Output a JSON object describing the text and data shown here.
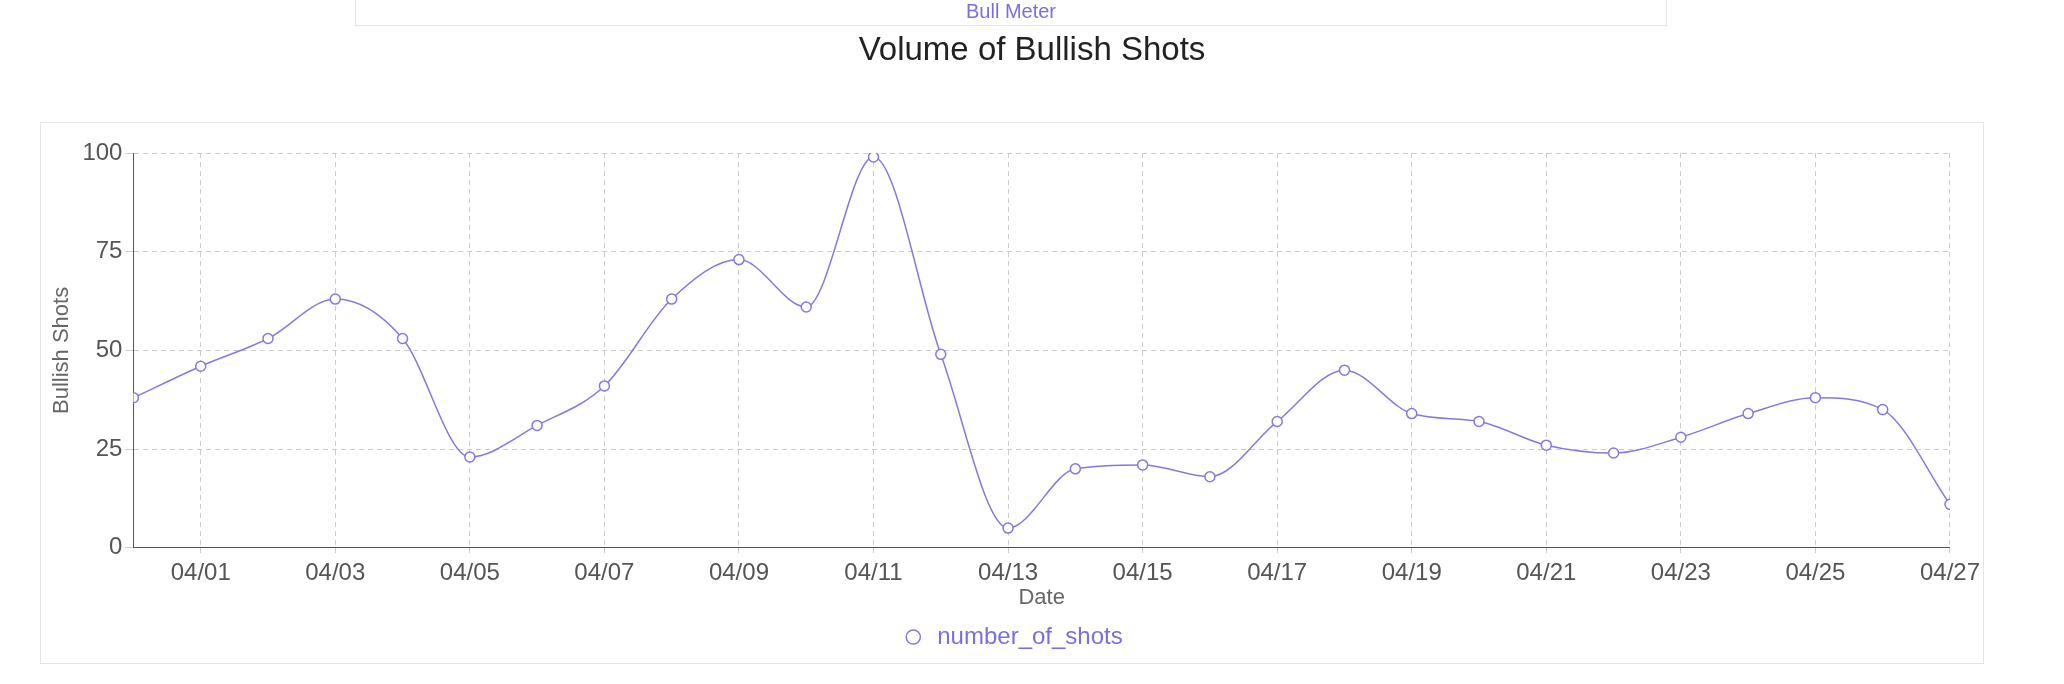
{
  "chart_data": {
    "type": "line",
    "title": "Volume of Bullish Shots",
    "xlabel": "Date",
    "ylabel": "Bullish Shots",
    "annotations": [
      "Bull Meter"
    ],
    "x": [
      "--03-31",
      "--04-01",
      "--04-02",
      "--04-03",
      "--04-04",
      "--04-05",
      "--04-06",
      "--04-07",
      "--04-08",
      "--04-09",
      "--04-10",
      "--04-11",
      "--04-12",
      "--04-13",
      "--04-14",
      "--04-15",
      "--04-16",
      "--04-17",
      "--04-18",
      "--04-19",
      "--04-20",
      "--04-21",
      "--04-22",
      "--04-23",
      "--04-24",
      "--04-25",
      "--04-26",
      "--04-27"
    ],
    "series": [
      {
        "name": "number_of_shots",
        "color": "#8579e0",
        "values": [
          38,
          46,
          53,
          63,
          53,
          23,
          31,
          41,
          63,
          73,
          61,
          99,
          49,
          5,
          20,
          21,
          18,
          32,
          45,
          34,
          32,
          26,
          24,
          28,
          34,
          38,
          35,
          11
        ]
      }
    ],
    "xlim": [
      "--03-31",
      "--04-27"
    ],
    "xticks": [
      {
        "value": "--04-01",
        "label": "04/01"
      },
      {
        "value": "--04-03",
        "label": "04/03"
      },
      {
        "value": "--04-05",
        "label": "04/05"
      },
      {
        "value": "--04-07",
        "label": "04/07"
      },
      {
        "value": "--04-09",
        "label": "04/09"
      },
      {
        "value": "--04-11",
        "label": "04/11"
      },
      {
        "value": "--04-13",
        "label": "04/13"
      },
      {
        "value": "--04-15",
        "label": "04/15"
      },
      {
        "value": "--04-17",
        "label": "04/17"
      },
      {
        "value": "--04-19",
        "label": "04/19"
      },
      {
        "value": "--04-21",
        "label": "04/21"
      },
      {
        "value": "--04-23",
        "label": "04/23"
      },
      {
        "value": "--04-25",
        "label": "04/25"
      },
      {
        "value": "--04-27",
        "label": "04/27"
      }
    ],
    "ylim": [
      0,
      100
    ],
    "yticks": [
      0,
      25,
      50,
      75,
      100
    ],
    "grid": true,
    "legend": "bottom",
    "marker": "circle",
    "line_style": "solid"
  }
}
